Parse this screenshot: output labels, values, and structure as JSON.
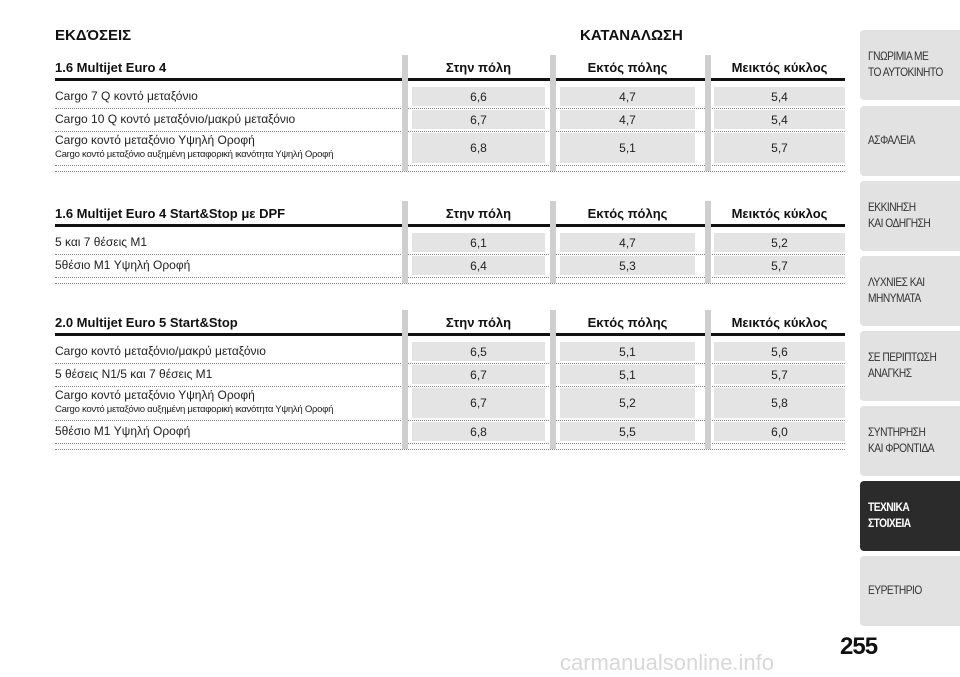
{
  "header": {
    "left": "ΕΚΔΌΣΕΙΣ",
    "right": "ΚΑΤΑΝΑΛΩΣΗ"
  },
  "sections": [
    {
      "title": "1.6 Multijet Euro 4",
      "columns": [
        "Στην πόλη",
        "Εκτός πόλης",
        "Μεικτός κύκλος"
      ],
      "rows": [
        {
          "label": "Cargo 7 Q κοντό μεταξόνιο",
          "values": [
            "6,6",
            "4,7",
            "5,4"
          ]
        },
        {
          "label": "Cargo 10 Q κοντό μεταξόνιο/μακρύ μεταξόνιο",
          "values": [
            "6,7",
            "4,7",
            "5,4"
          ]
        },
        {
          "label": "Cargo κοντό μεταξόνιο Υψηλή Οροφή",
          "sublabel": "Cargo κοντό μεταξόνιο αυξημένη μεταφορική ικανότητα Υψηλή Οροφή",
          "values": [
            "6,8",
            "5,1",
            "5,7"
          ]
        }
      ]
    },
    {
      "title": "1.6 Multijet Euro 4 Start&Stop με DPF",
      "columns": [
        "Στην πόλη",
        "Εκτός πόλης",
        "Μεικτός κύκλος"
      ],
      "rows": [
        {
          "label": "5 και 7 θέσεις M1",
          "values": [
            "6,1",
            "4,7",
            "5,2"
          ]
        },
        {
          "label": "5θέσιο M1 Υψηλή Οροφή",
          "values": [
            "6,4",
            "5,3",
            "5,7"
          ]
        }
      ]
    },
    {
      "title": "2.0 Multijet Euro 5 Start&Stop",
      "columns": [
        "Στην πόλη",
        "Εκτός πόλης",
        "Μεικτός κύκλος"
      ],
      "rows": [
        {
          "label": "Cargo κοντό μεταξόνιο/μακρύ μεταξόνιο",
          "values": [
            "6,5",
            "5,1",
            "5,6"
          ]
        },
        {
          "label": "5 θέσεις N1/5 και 7 θέσεις M1",
          "values": [
            "6,7",
            "5,1",
            "5,7"
          ]
        },
        {
          "label": "Cargo κοντό μεταξόνιο Υψηλή Οροφή",
          "sublabel": "Cargo κοντό μεταξόνιο αυξημένη μεταφορική ικανότητα Υψηλή Οροφή",
          "values": [
            "6,7",
            "5,2",
            "5,8"
          ]
        },
        {
          "label": "5θέσιο M1 Υψηλή Οροφή",
          "values": [
            "6,8",
            "5,5",
            "6,0"
          ]
        }
      ]
    }
  ],
  "sidebar": {
    "tabs": [
      {
        "lines": [
          "ΓΝΩΡΙΜΙΑ ΜΕ",
          "ΤΟ ΑΥΤΟΚΙΝΗΤΟ"
        ]
      },
      {
        "lines": [
          "ΑΣΦΑΛΕΙΑ"
        ]
      },
      {
        "lines": [
          "ΕΚΚΙΝΗΣΗ",
          "ΚΑΙ ΟΔΗΓΗΣΗ"
        ]
      },
      {
        "lines": [
          "ΛΥΧΝΙΕΣ ΚΑΙ",
          "ΜΗΝΥΜΑΤΑ"
        ]
      },
      {
        "lines": [
          "ΣΕ ΠΕΡΙΠΤΩΣΗ",
          "ΑΝΑΓΚΗΣ"
        ]
      },
      {
        "lines": [
          "ΣΥΝΤΗΡΗΣΗ",
          "ΚΑΙ ΦΡΟΝΤΙΔΑ"
        ]
      },
      {
        "lines": [
          "ΤΕΧΝΙΚΑ",
          "ΣΤΟΙΧΕΙΑ"
        ],
        "active": true
      },
      {
        "lines": [
          "ΕΥΡΕΤΗΡΙΟ"
        ]
      }
    ]
  },
  "page_number": "255",
  "watermark": "carmanualsonline.info"
}
